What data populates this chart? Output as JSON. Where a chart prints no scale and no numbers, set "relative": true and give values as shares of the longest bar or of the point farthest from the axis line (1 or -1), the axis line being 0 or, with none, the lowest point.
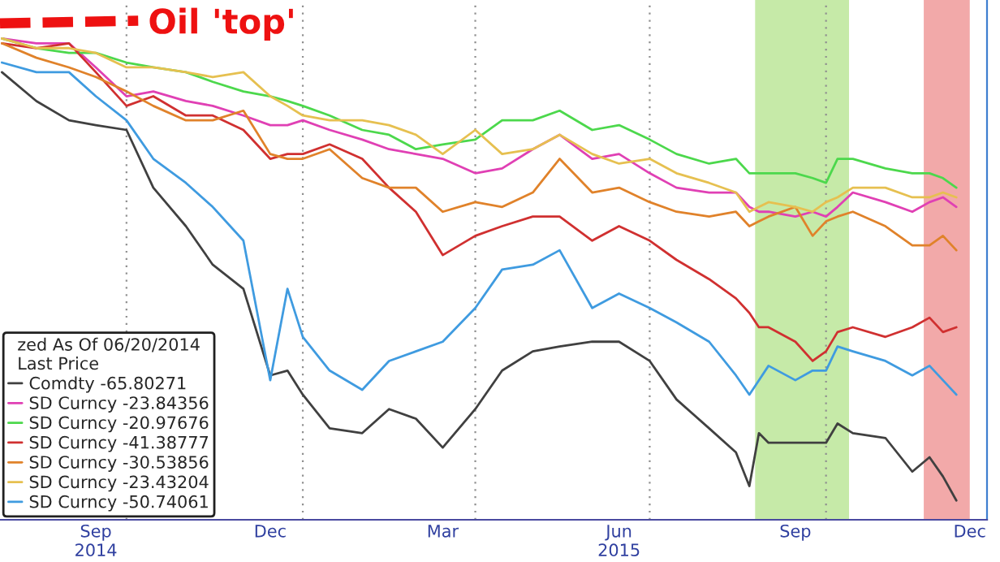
{
  "chart_data": {
    "type": "line",
    "relative": true,
    "legend_title": "zed As Of 06/20/2014\nLast Price",
    "annotations": [
      "Oil 'top'"
    ],
    "x": [
      "2014-07-28",
      "2014-08-15",
      "2014-09-01",
      "2014-09-15",
      "2014-10-01",
      "2014-10-15",
      "2014-11-01",
      "2014-11-15",
      "2014-12-01",
      "2014-12-15",
      "2014-12-24",
      "2015-01-01",
      "2015-01-15",
      "2015-02-01",
      "2015-02-15",
      "2015-03-01",
      "2015-03-15",
      "2015-04-01",
      "2015-04-15",
      "2015-05-01",
      "2015-05-15",
      "2015-06-01",
      "2015-06-15",
      "2015-07-01",
      "2015-07-15",
      "2015-08-01",
      "2015-08-15",
      "2015-08-22",
      "2015-08-27",
      "2015-09-01",
      "2015-09-15",
      "2015-09-24",
      "2015-10-01",
      "2015-10-07",
      "2015-10-15",
      "2015-11-01",
      "2015-11-15",
      "2015-11-24",
      "2015-12-01",
      "2015-12-08"
    ],
    "xlim": [
      "2014-07-27",
      "2015-12-24"
    ],
    "xticks": [
      {
        "value": "2014-10-01",
        "label": null
      },
      {
        "value": "2015-01-01",
        "label": null
      },
      {
        "value": "2015-04-01",
        "label": null
      },
      {
        "value": "2015-07-01",
        "label": null
      },
      {
        "value": "2015-10-01",
        "label": null
      },
      {
        "value": "2014-09-15",
        "label": "Sep\n2014"
      },
      {
        "value": "2014-12-15",
        "label": "Dec"
      },
      {
        "value": "2015-03-15",
        "label": "Mar"
      },
      {
        "value": "2015-06-15",
        "label": "Jun\n2015"
      },
      {
        "value": "2015-09-15",
        "label": "Sep"
      },
      {
        "value": "2015-12-15",
        "label": "Dec"
      }
    ],
    "grid": "x",
    "legend": "bottom left",
    "line_style": "solid",
    "bands": [
      {
        "axis": "x",
        "from": "2015-08-25",
        "to": "2015-10-13",
        "color": "#c6eaa8"
      },
      {
        "axis": "x",
        "from": "2015-11-21",
        "to": "2015-12-15",
        "color": "#f2a9a9"
      }
    ],
    "series": [
      {
        "name": "Comdty -65.80271",
        "color": "#404040",
        "values": [
          0.93,
          0.87,
          0.83,
          0.82,
          0.81,
          0.69,
          0.61,
          0.53,
          0.48,
          0.3,
          0.31,
          0.26,
          0.19,
          0.18,
          0.23,
          0.21,
          0.15,
          0.23,
          0.31,
          0.35,
          0.36,
          0.37,
          0.37,
          0.33,
          0.25,
          0.19,
          0.14,
          0.07,
          0.18,
          0.16,
          0.16,
          0.16,
          0.16,
          0.2,
          0.18,
          0.17,
          0.1,
          0.13,
          0.09,
          0.04
        ]
      },
      {
        "name": "SD Curncy -23.84356",
        "color": "#e040b4",
        "values": [
          1.0,
          0.99,
          0.99,
          0.94,
          0.88,
          0.89,
          0.87,
          0.86,
          0.84,
          0.82,
          0.82,
          0.83,
          0.81,
          0.79,
          0.77,
          0.76,
          0.75,
          0.72,
          0.73,
          0.77,
          0.8,
          0.75,
          0.76,
          0.72,
          0.69,
          0.68,
          0.68,
          0.65,
          0.64,
          0.64,
          0.63,
          0.64,
          0.63,
          0.65,
          0.68,
          0.66,
          0.64,
          0.66,
          0.67,
          0.65
        ]
      },
      {
        "name": "SD Curncy -20.97676",
        "color": "#4cd84c",
        "values": [
          1.0,
          0.98,
          0.97,
          0.97,
          0.95,
          0.94,
          0.93,
          0.91,
          0.89,
          0.88,
          0.87,
          0.86,
          0.84,
          0.81,
          0.8,
          0.77,
          0.78,
          0.79,
          0.83,
          0.83,
          0.85,
          0.81,
          0.82,
          0.79,
          0.76,
          0.74,
          0.75,
          0.72,
          0.72,
          0.72,
          0.72,
          0.71,
          0.7,
          0.75,
          0.75,
          0.73,
          0.72,
          0.72,
          0.71,
          0.69
        ]
      },
      {
        "name": "SD Curncy -41.38777",
        "color": "#d03030",
        "values": [
          0.99,
          0.98,
          0.99,
          0.93,
          0.86,
          0.88,
          0.84,
          0.84,
          0.81,
          0.75,
          0.76,
          0.76,
          0.78,
          0.75,
          0.69,
          0.64,
          0.55,
          0.59,
          0.61,
          0.63,
          0.63,
          0.58,
          0.61,
          0.58,
          0.54,
          0.5,
          0.46,
          0.43,
          0.4,
          0.4,
          0.37,
          0.33,
          0.35,
          0.39,
          0.4,
          0.38,
          0.4,
          0.42,
          0.39,
          0.4
        ]
      },
      {
        "name": "SD Curncy -30.53856",
        "color": "#e0822a",
        "values": [
          0.99,
          0.96,
          0.94,
          0.92,
          0.89,
          0.86,
          0.83,
          0.83,
          0.85,
          0.76,
          0.75,
          0.75,
          0.77,
          0.71,
          0.69,
          0.69,
          0.64,
          0.66,
          0.65,
          0.68,
          0.75,
          0.68,
          0.69,
          0.66,
          0.64,
          0.63,
          0.64,
          0.61,
          0.62,
          0.63,
          0.65,
          0.59,
          0.62,
          0.63,
          0.64,
          0.61,
          0.57,
          0.57,
          0.59,
          0.56
        ]
      },
      {
        "name": "SD Curncy -23.43204",
        "color": "#e6c050",
        "values": [
          1.0,
          0.98,
          0.98,
          0.97,
          0.94,
          0.94,
          0.93,
          0.92,
          0.93,
          0.88,
          0.86,
          0.84,
          0.83,
          0.83,
          0.82,
          0.8,
          0.76,
          0.81,
          0.76,
          0.77,
          0.8,
          0.76,
          0.74,
          0.75,
          0.72,
          0.7,
          0.68,
          0.64,
          0.65,
          0.66,
          0.65,
          0.64,
          0.66,
          0.67,
          0.69,
          0.69,
          0.67,
          0.67,
          0.68,
          0.67
        ]
      },
      {
        "name": "SD Curncy -50.74061",
        "color": "#3f9be0",
        "values": [
          0.95,
          0.93,
          0.93,
          0.88,
          0.83,
          0.75,
          0.7,
          0.65,
          0.58,
          0.29,
          0.48,
          0.38,
          0.31,
          0.27,
          0.33,
          0.35,
          0.37,
          0.44,
          0.52,
          0.53,
          0.56,
          0.44,
          0.47,
          0.44,
          0.41,
          0.37,
          0.3,
          0.26,
          0.29,
          0.32,
          0.29,
          0.31,
          0.31,
          0.36,
          0.35,
          0.33,
          0.3,
          0.32,
          0.29,
          0.26
        ]
      }
    ]
  }
}
